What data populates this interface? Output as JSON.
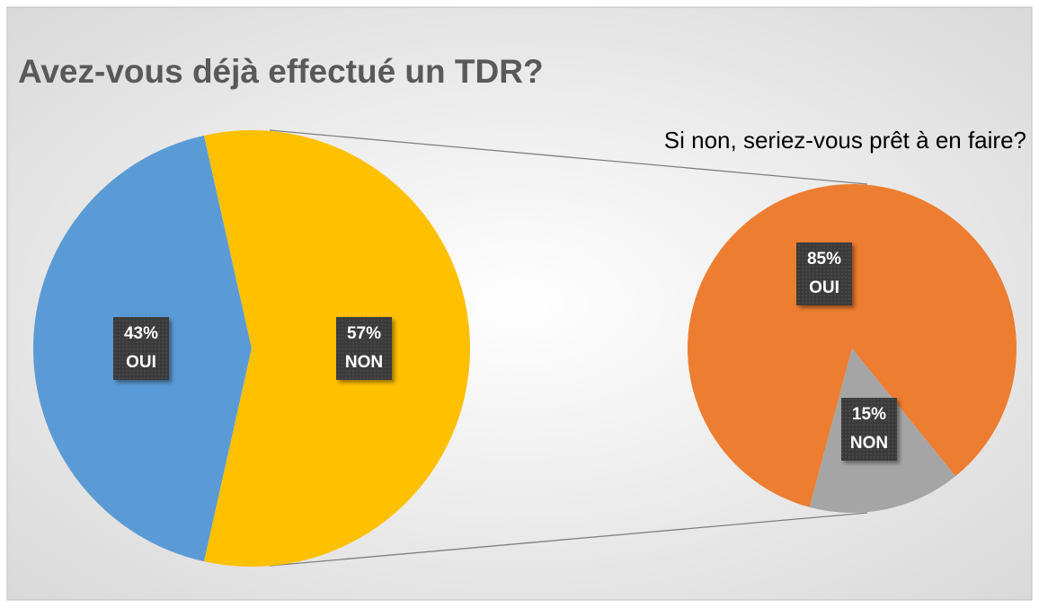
{
  "chart_data": [
    {
      "type": "pie",
      "title": "Avez-vous déjà effectué un TDR?",
      "categories": [
        "OUI",
        "NON"
      ],
      "values": [
        43,
        57
      ],
      "value_labels": [
        "43%",
        "57%"
      ],
      "colors": [
        "#5b9bd5",
        "#ffc000"
      ]
    },
    {
      "type": "pie",
      "title": "Si non, seriez-vous prêt à en faire?",
      "categories": [
        "OUI",
        "NON"
      ],
      "values": [
        85,
        15
      ],
      "value_labels": [
        "85%",
        "15%"
      ],
      "colors": [
        "#ed7d31",
        "#a5a5a5"
      ]
    }
  ]
}
